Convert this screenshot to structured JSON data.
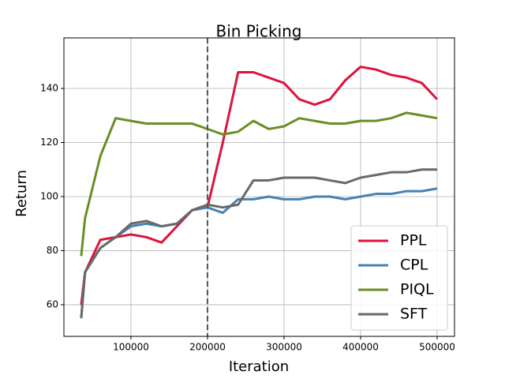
{
  "chart_data": {
    "type": "line",
    "title": "Bin Picking",
    "xlabel": "Iteration",
    "ylabel": "Return",
    "x": [
      35000,
      40000,
      60000,
      80000,
      100000,
      120000,
      140000,
      160000,
      180000,
      200000,
      220000,
      240000,
      260000,
      280000,
      300000,
      320000,
      340000,
      360000,
      380000,
      400000,
      420000,
      440000,
      460000,
      480000,
      500000
    ],
    "series": [
      {
        "name": "PPL",
        "color": "#dc143c",
        "values": [
          60,
          72,
          84,
          85,
          86,
          85,
          83,
          89,
          95,
          96,
          120,
          146,
          146,
          144,
          142,
          136,
          134,
          136,
          143,
          148,
          147,
          145,
          144,
          142,
          136
        ]
      },
      {
        "name": "CPL",
        "color": "#4682b4",
        "values": [
          55,
          72,
          81,
          85,
          89,
          90,
          89,
          90,
          95,
          96,
          94,
          99,
          99,
          100,
          99,
          99,
          100,
          100,
          99,
          100,
          101,
          101,
          102,
          102,
          103
        ]
      },
      {
        "name": "PIQL",
        "color": "#6b8e23",
        "values": [
          78,
          92,
          115,
          129,
          128,
          127,
          127,
          127,
          127,
          125,
          123,
          124,
          128,
          125,
          126,
          129,
          128,
          127,
          127,
          128,
          128,
          129,
          131,
          130,
          129
        ]
      },
      {
        "name": "SFT",
        "color": "#696969",
        "values": [
          55,
          72,
          81,
          85,
          90,
          91,
          89,
          90,
          95,
          97,
          96,
          97,
          106,
          106,
          107,
          107,
          107,
          106,
          105,
          107,
          108,
          109,
          109,
          110,
          110
        ]
      }
    ],
    "xlim": [
      12400,
      522700
    ],
    "ylim": [
      48.3,
      158.7
    ],
    "xticks": [
      100000,
      200000,
      300000,
      400000,
      500000
    ],
    "yticks": [
      60,
      80,
      100,
      120,
      140
    ],
    "vline": 200000,
    "grid": true,
    "legend": "lower right"
  }
}
